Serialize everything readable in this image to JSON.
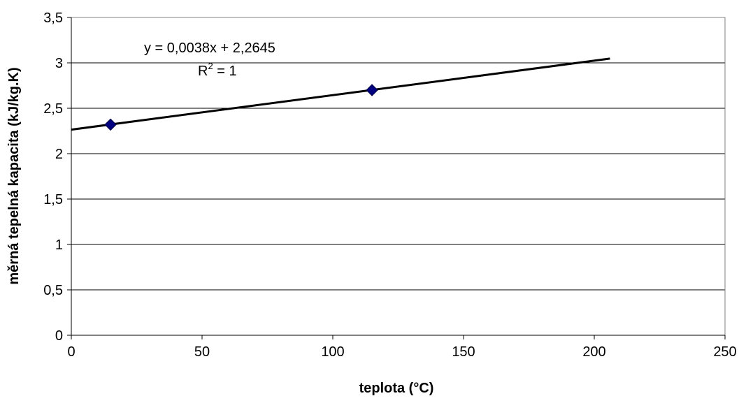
{
  "chart_data": {
    "type": "scatter",
    "xlabel": "teplota (°C)",
    "ylabel": "měrná tepelná kapacita (kJ/kg.K)",
    "xlim": [
      0,
      250
    ],
    "ylim": [
      0,
      3.5
    ],
    "x_ticks": [
      "0",
      "50",
      "100",
      "150",
      "200",
      "250"
    ],
    "x_tick_values": [
      0,
      50,
      100,
      150,
      200,
      250
    ],
    "y_ticks": [
      "0",
      "0,5",
      "1",
      "1,5",
      "2",
      "2,5",
      "3",
      "3,5"
    ],
    "y_tick_values": [
      0,
      0.5,
      1,
      1.5,
      2,
      2.5,
      3,
      3.5
    ],
    "grid": "horizontal",
    "series": [
      {
        "x": [
          15,
          115
        ],
        "y": [
          2.32,
          2.7
        ],
        "marker": "diamond",
        "color": "#000080"
      }
    ],
    "trendline": {
      "type": "linear",
      "slope": 0.0038,
      "intercept": 2.2645,
      "x_range": [
        0,
        206
      ],
      "color": "#000000",
      "equation": "y = 0,0038x + 2,2645",
      "r2_prefix": "R",
      "r2_exponent": "2",
      "r2_suffix": " = 1"
    }
  }
}
